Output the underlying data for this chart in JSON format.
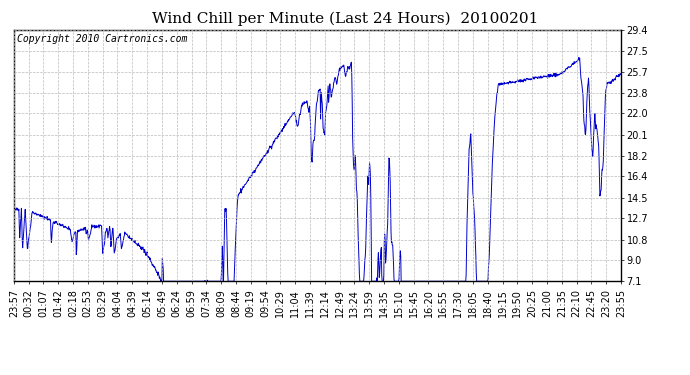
{
  "title": "Wind Chill per Minute (Last 24 Hours)  20100201",
  "copyright": "Copyright 2010 Cartronics.com",
  "line_color": "#0000CC",
  "bg_color": "#ffffff",
  "grid_color": "#bbbbbb",
  "ylim": [
    7.1,
    29.4
  ],
  "yticks": [
    7.1,
    9.0,
    10.8,
    12.7,
    14.5,
    16.4,
    18.2,
    20.1,
    22.0,
    23.8,
    25.7,
    27.5,
    29.4
  ],
  "xtick_labels": [
    "23:57",
    "00:32",
    "01:07",
    "01:42",
    "02:18",
    "02:53",
    "03:29",
    "04:04",
    "04:39",
    "05:14",
    "05:49",
    "06:24",
    "06:59",
    "07:34",
    "08:09",
    "08:44",
    "09:19",
    "09:54",
    "10:29",
    "11:04",
    "11:39",
    "12:14",
    "12:49",
    "13:24",
    "13:59",
    "14:35",
    "15:10",
    "15:45",
    "16:20",
    "16:55",
    "17:30",
    "18:05",
    "18:40",
    "19:15",
    "19:50",
    "20:25",
    "21:00",
    "21:35",
    "22:10",
    "22:45",
    "23:20",
    "23:55"
  ],
  "title_fontsize": 11,
  "tick_fontsize": 7,
  "copyright_fontsize": 7,
  "figwidth": 6.9,
  "figheight": 3.75,
  "dpi": 100
}
